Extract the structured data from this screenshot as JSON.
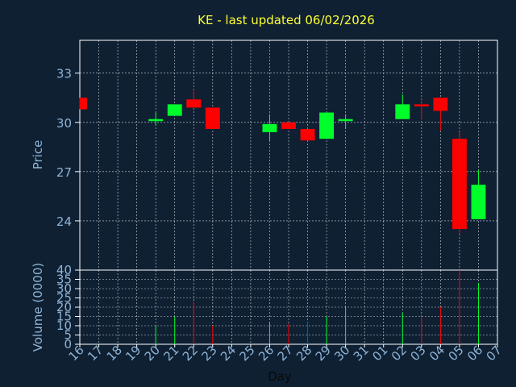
{
  "colors": {
    "background": "#0f2033",
    "axis": "#ffffff",
    "grid": "#ffffff",
    "up": "#00ff2a",
    "down": "#ff0000",
    "title": "#ffff33",
    "text": "#8fb4d6"
  },
  "chart_data": {
    "type": "candlestick",
    "title": "KE - last updated 06/02/2026",
    "xlabel": "Day",
    "ylabel": "Price",
    "volume_label": "Volume (0000)",
    "grid": true,
    "x": [
      "16",
      "17",
      "18",
      "19",
      "20",
      "21",
      "22",
      "23",
      "24",
      "25",
      "26",
      "27",
      "28",
      "29",
      "30",
      "31",
      "01",
      "02",
      "03",
      "04",
      "05",
      "06",
      "07"
    ],
    "price_ylim": [
      21,
      35
    ],
    "price_ticks": [
      24,
      27,
      30,
      33
    ],
    "volume_ylim": [
      0,
      40
    ],
    "volume_ticks": [
      0,
      5,
      10,
      15,
      20,
      25,
      30,
      35,
      40
    ],
    "candles": [
      {
        "day": "16",
        "open": 31.5,
        "close": 30.8,
        "high": 31.5,
        "low": 30.8,
        "volume": 0
      },
      {
        "day": "20",
        "open": 30.1,
        "close": 30.2,
        "high": 30.6,
        "low": 29.8,
        "volume": 10
      },
      {
        "day": "21",
        "open": 30.4,
        "close": 31.1,
        "high": 31.1,
        "low": 30.4,
        "volume": 15
      },
      {
        "day": "22",
        "open": 31.4,
        "close": 30.9,
        "high": 32.0,
        "low": 30.9,
        "volume": 23
      },
      {
        "day": "23",
        "open": 30.9,
        "close": 29.6,
        "high": 30.9,
        "low": 29.6,
        "volume": 10
      },
      {
        "day": "26",
        "open": 29.4,
        "close": 29.9,
        "high": 30.5,
        "low": 28.9,
        "volume": 12
      },
      {
        "day": "27",
        "open": 30.0,
        "close": 29.6,
        "high": 30.0,
        "low": 29.6,
        "volume": 11
      },
      {
        "day": "28",
        "open": 29.6,
        "close": 28.9,
        "high": 29.6,
        "low": 28.9,
        "volume": 12
      },
      {
        "day": "29",
        "open": 29.0,
        "close": 30.6,
        "high": 30.6,
        "low": 29.0,
        "volume": 15
      },
      {
        "day": "30",
        "open": 30.1,
        "close": 30.2,
        "high": 30.5,
        "low": 29.6,
        "volume": 20
      },
      {
        "day": "02",
        "open": 30.2,
        "close": 31.1,
        "high": 31.7,
        "low": 30.2,
        "volume": 17
      },
      {
        "day": "03",
        "open": 31.1,
        "close": 31.0,
        "high": 31.4,
        "low": 30.2,
        "volume": 15
      },
      {
        "day": "04",
        "open": 31.5,
        "close": 30.7,
        "high": 31.5,
        "low": 29.5,
        "volume": 20
      },
      {
        "day": "05",
        "open": 29.0,
        "close": 23.5,
        "high": 29.4,
        "low": 23.2,
        "volume": 40
      },
      {
        "day": "06",
        "open": 24.1,
        "close": 26.2,
        "high": 27.1,
        "low": 24.1,
        "volume": 33
      }
    ]
  }
}
